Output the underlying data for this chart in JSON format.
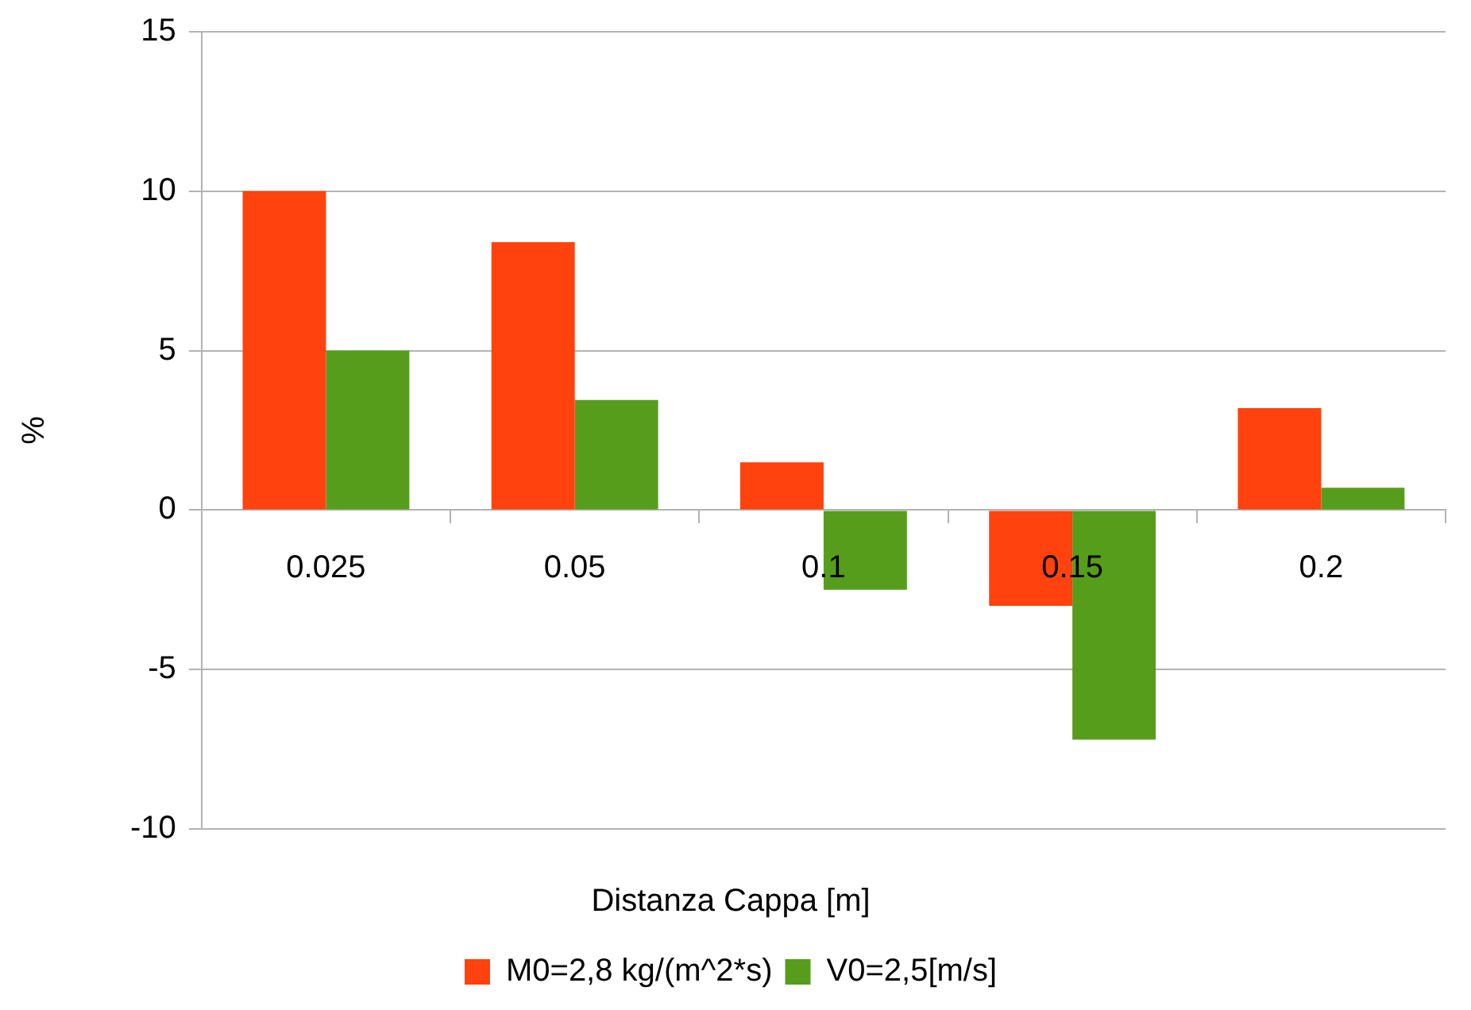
{
  "chart_data": {
    "type": "bar",
    "xlabel": "Distanza Cappa [m]",
    "ylabel": "%",
    "categories": [
      "0.025",
      "0.05",
      "0.1",
      "0.15",
      "0.2"
    ],
    "series": [
      {
        "name": "M0=2,8 kg/(m^2*s)",
        "color": "#ff420e",
        "values": [
          10,
          8.4,
          1.5,
          -3,
          3.2
        ]
      },
      {
        "name": "V0=2,5[m/s]",
        "color": "#579d1c",
        "values": [
          5,
          3.45,
          -2.5,
          -7.2,
          0.7
        ]
      }
    ],
    "ylim": [
      -10,
      15
    ],
    "yticks": [
      -10,
      -5,
      0,
      5,
      10,
      15
    ],
    "grid": "y",
    "legend": "bottom"
  }
}
